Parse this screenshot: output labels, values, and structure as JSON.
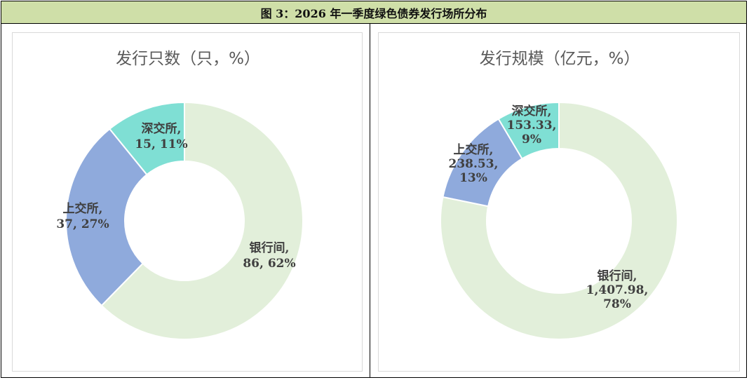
{
  "figure_title": "图 3：2026 年一季度绿色债券发行场所分布",
  "colors": {
    "interbank": "#e2efda",
    "shanghai": "#8faadc",
    "shenzhen": "#7fdfd4"
  },
  "chart_data": [
    {
      "type": "pie",
      "donut": true,
      "title": "发行只数（只，%）",
      "categories": [
        "银行间",
        "上交所",
        "深交所"
      ],
      "values": [
        86,
        37,
        15
      ],
      "percent": [
        62,
        27,
        11
      ],
      "labels": [
        [
          "银行间,",
          "86, 62%"
        ],
        [
          "上交所,",
          "37, 27%"
        ],
        [
          "深交所,",
          "15, 11%"
        ]
      ]
    },
    {
      "type": "pie",
      "donut": true,
      "title": "发行规模（亿元，%）",
      "categories": [
        "银行间",
        "上交所",
        "深交所"
      ],
      "values": [
        1407.98,
        238.53,
        153.33
      ],
      "percent": [
        78,
        13,
        9
      ],
      "labels": [
        [
          "银行间,",
          "1,407.98,",
          "78%"
        ],
        [
          "上交所,",
          "238.53,",
          "13%"
        ],
        [
          "深交所,",
          "153.33,",
          "9%"
        ]
      ]
    }
  ]
}
